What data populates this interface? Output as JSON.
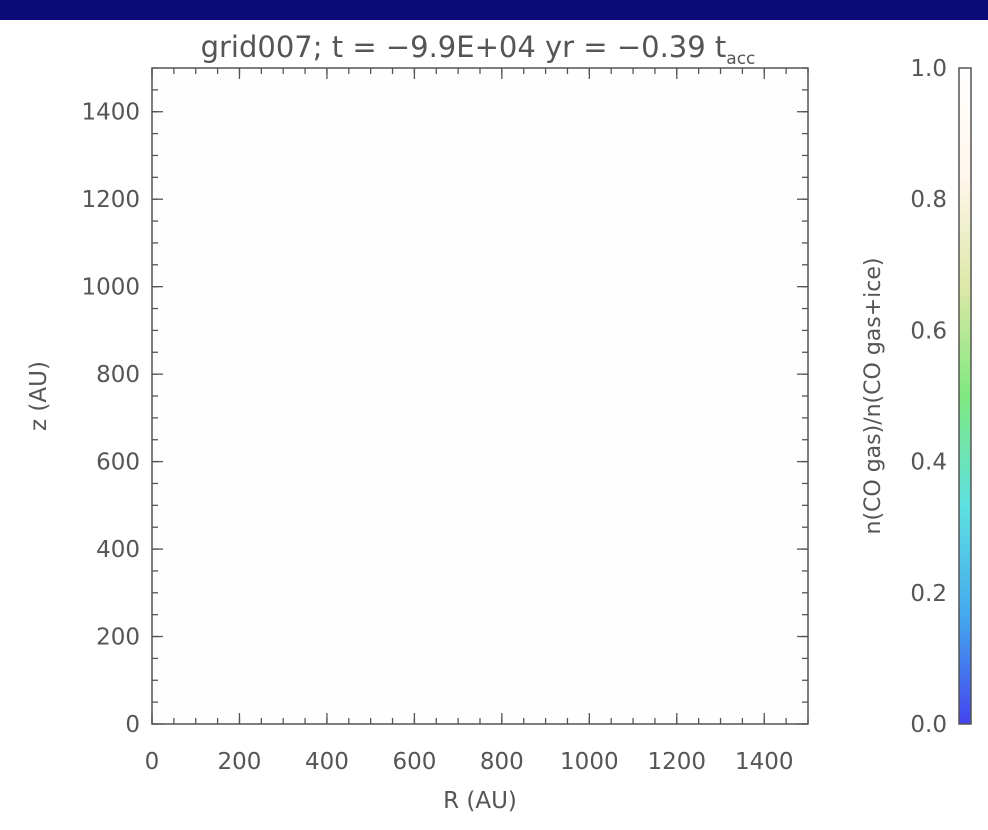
{
  "colors": {
    "top_bar": "#0a0a78",
    "axis": "#555555",
    "plot_fill": "#fefefe",
    "colormap": [
      "#4444ee",
      "#45aaee",
      "#5ee0e0",
      "#80e880",
      "#dde8a8",
      "#fff6ec",
      "#ffffff"
    ]
  },
  "chart_data": {
    "type": "heatmap",
    "title": {
      "main": "grid007; t  =  −9.9E+04  yr  =  −0.39  t",
      "subscript": "acc"
    },
    "xlabel": "R (AU)",
    "ylabel": "z (AU)",
    "xlim": [
      0,
      1500
    ],
    "ylim": [
      0,
      1500
    ],
    "xticks": [
      0,
      200,
      400,
      600,
      800,
      1000,
      1200,
      1400
    ],
    "yticks": [
      0,
      200,
      400,
      600,
      800,
      1000,
      1200,
      1400
    ],
    "x_minor_step": 50,
    "y_minor_step": 50,
    "field_value": 1.0,
    "colorbar": {
      "label": "n(CO gas)/n(CO gas+ice)",
      "range": [
        0.0,
        1.0
      ],
      "ticks": [
        "0.0",
        "0.2",
        "0.4",
        "0.6",
        "0.8",
        "1.0"
      ]
    }
  }
}
